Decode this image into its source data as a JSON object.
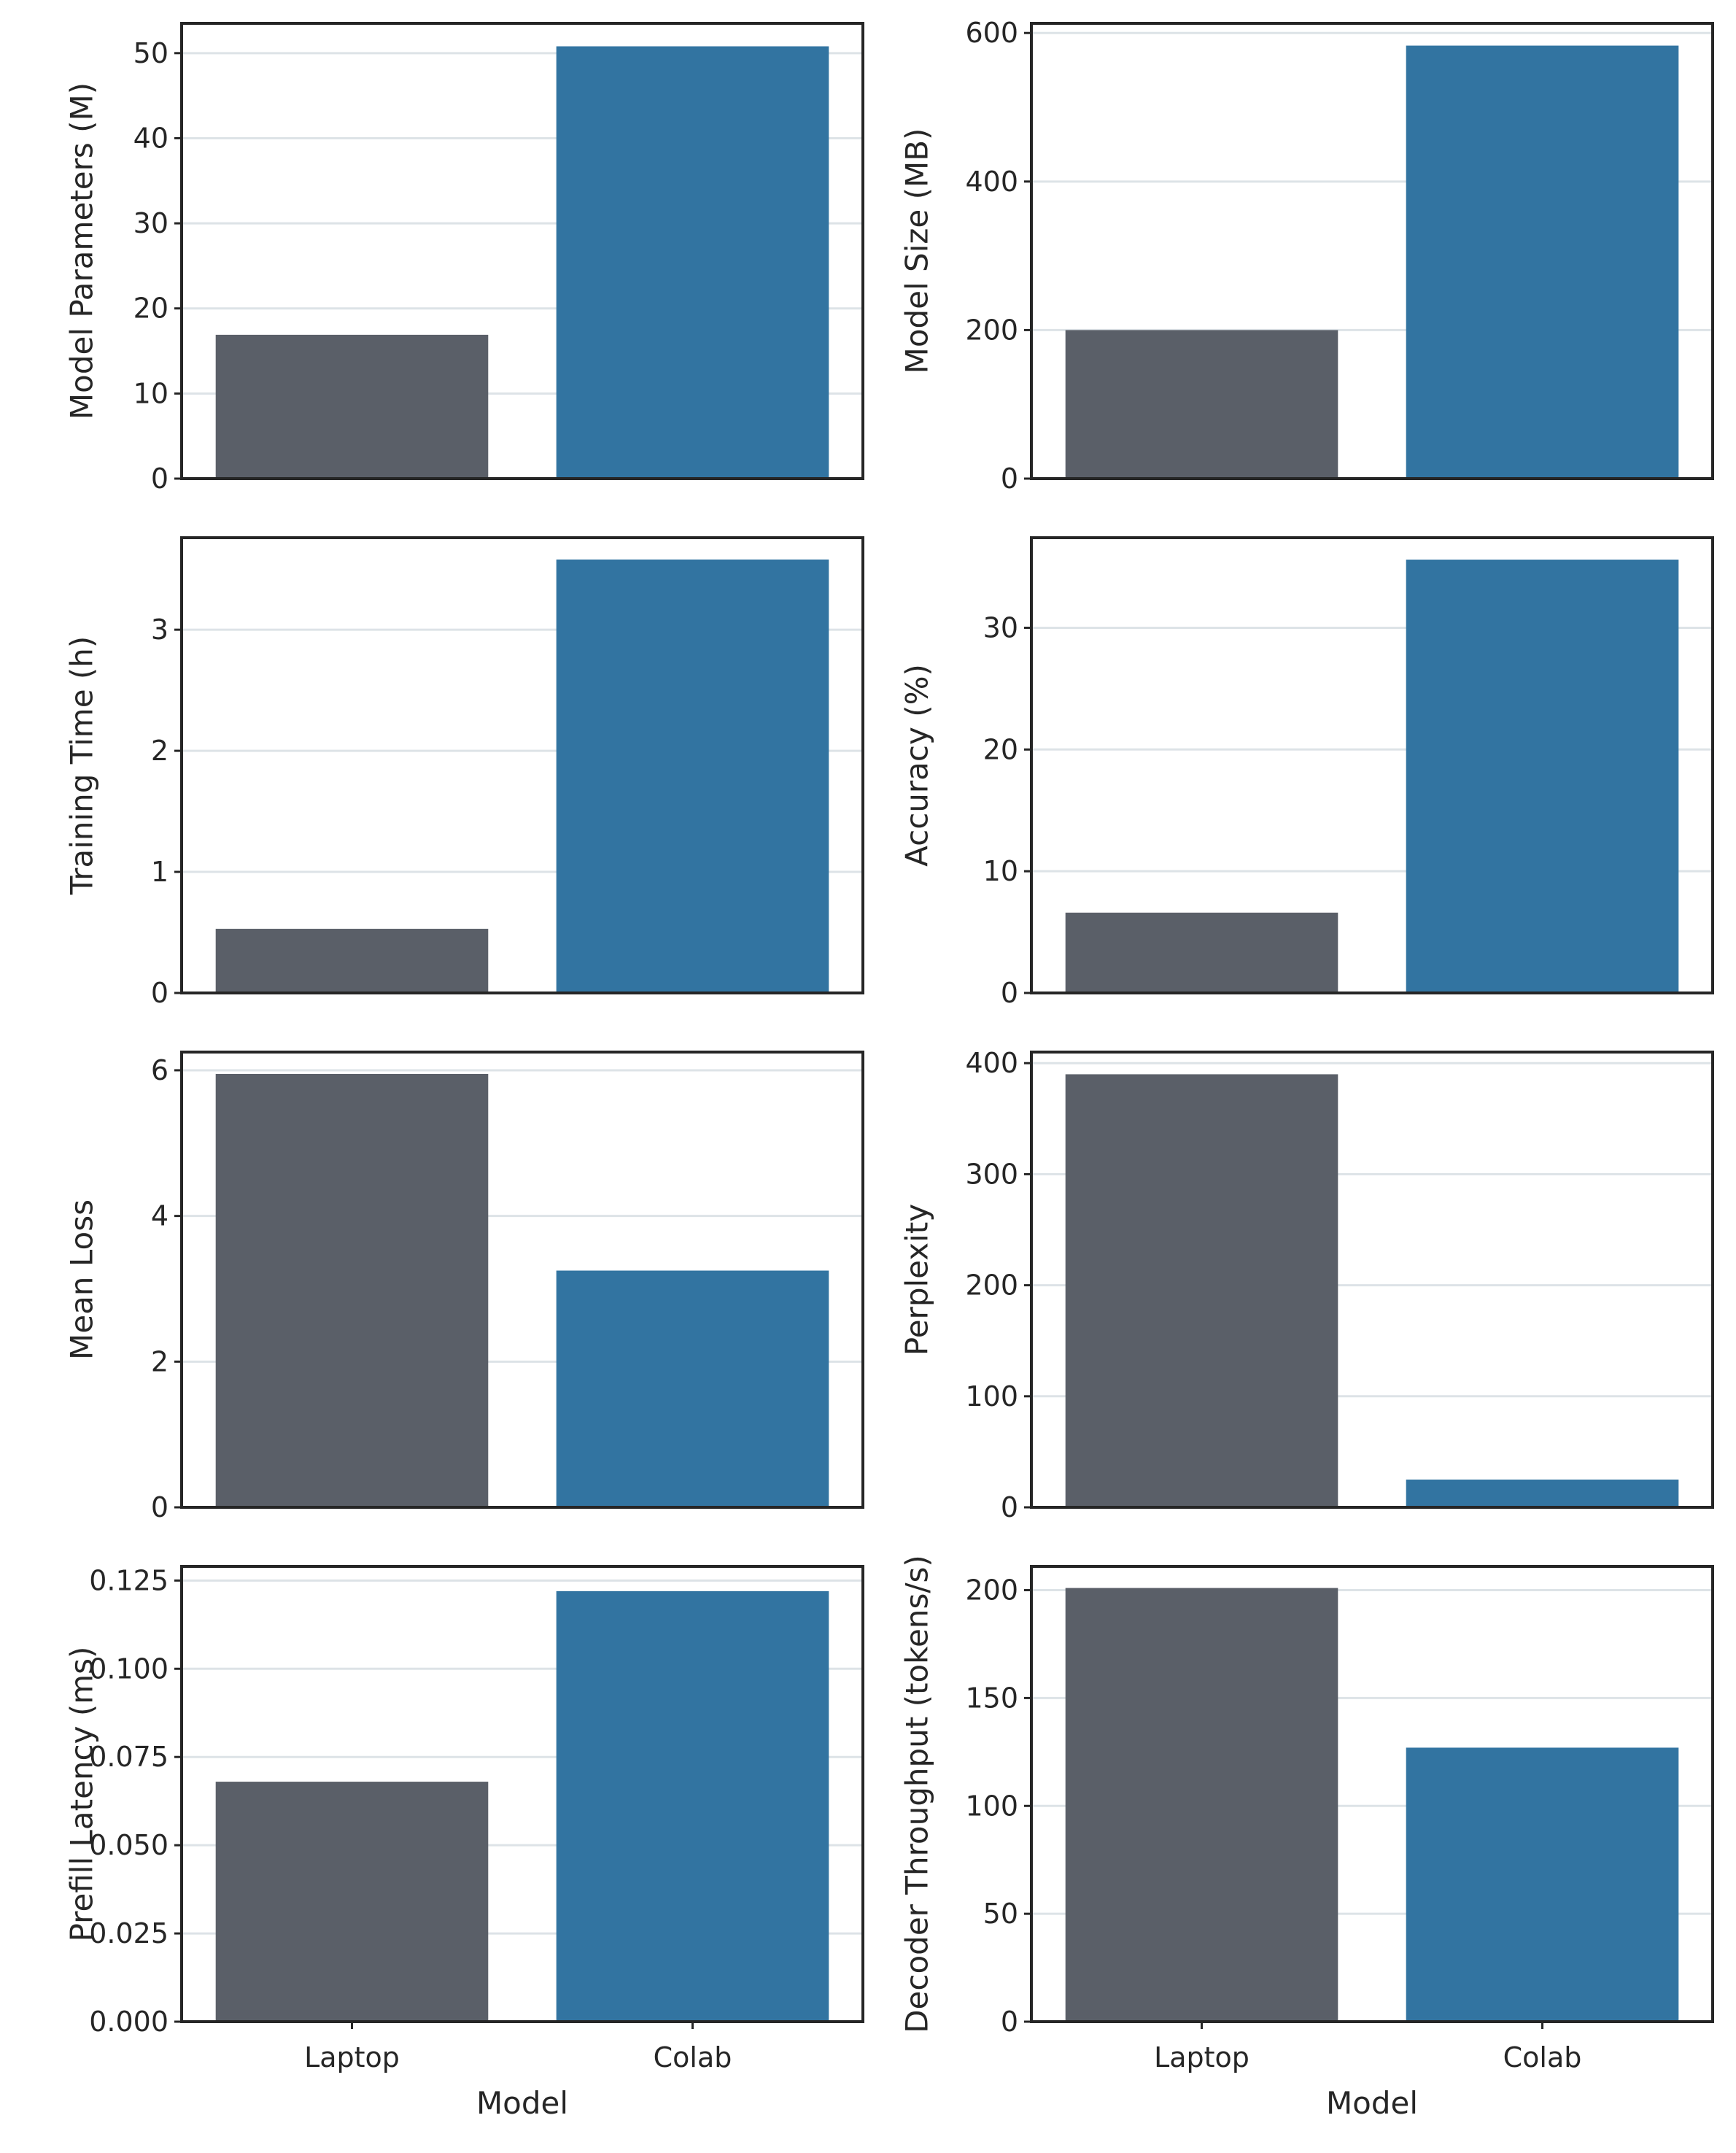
{
  "chart_data": [
    {
      "type": "bar",
      "categories": [
        "Laptop",
        "Colab"
      ],
      "values": [
        16.9,
        50.8
      ],
      "colors": [
        "#5a5f68",
        "#3274a1"
      ],
      "xlabel": "",
      "ylabel": "Model Parameters (M)",
      "ylim": [
        0,
        53.5
      ],
      "yticks": [
        0,
        10,
        20,
        30,
        40,
        50
      ],
      "ytick_labels": [
        "0",
        "10",
        "20",
        "30",
        "40",
        "50"
      ],
      "grid": "horizontal",
      "show_xticks": false
    },
    {
      "type": "bar",
      "categories": [
        "Laptop",
        "Colab"
      ],
      "values": [
        200,
        583
      ],
      "colors": [
        "#5a5f68",
        "#3274a1"
      ],
      "xlabel": "",
      "ylabel": "Model Size (MB)",
      "ylim": [
        0,
        613
      ],
      "yticks": [
        0,
        200,
        400,
        600
      ],
      "ytick_labels": [
        "0",
        "200",
        "400",
        "600"
      ],
      "grid": "horizontal",
      "show_xticks": false
    },
    {
      "type": "bar",
      "categories": [
        "Laptop",
        "Colab"
      ],
      "values": [
        0.53,
        3.58
      ],
      "colors": [
        "#5a5f68",
        "#3274a1"
      ],
      "xlabel": "",
      "ylabel": "Training Time (h)",
      "ylim": [
        0,
        3.76
      ],
      "yticks": [
        0,
        1,
        2,
        3
      ],
      "ytick_labels": [
        "0",
        "1",
        "2",
        "3"
      ],
      "grid": "horizontal",
      "show_xticks": false
    },
    {
      "type": "bar",
      "categories": [
        "Laptop",
        "Colab"
      ],
      "values": [
        6.6,
        35.6
      ],
      "colors": [
        "#5a5f68",
        "#3274a1"
      ],
      "xlabel": "",
      "ylabel": "Accuracy (%)",
      "ylim": [
        0,
        37.4
      ],
      "yticks": [
        0,
        10,
        20,
        30
      ],
      "ytick_labels": [
        "0",
        "10",
        "20",
        "30"
      ],
      "grid": "horizontal",
      "show_xticks": false
    },
    {
      "type": "bar",
      "categories": [
        "Laptop",
        "Colab"
      ],
      "values": [
        5.95,
        3.25
      ],
      "colors": [
        "#5a5f68",
        "#3274a1"
      ],
      "xlabel": "",
      "ylabel": "Mean Loss",
      "ylim": [
        0,
        6.25
      ],
      "yticks": [
        0,
        2,
        4,
        6
      ],
      "ytick_labels": [
        "0",
        "2",
        "4",
        "6"
      ],
      "grid": "horizontal",
      "show_xticks": false
    },
    {
      "type": "bar",
      "categories": [
        "Laptop",
        "Colab"
      ],
      "values": [
        390,
        25
      ],
      "colors": [
        "#5a5f68",
        "#3274a1"
      ],
      "xlabel": "",
      "ylabel": "Perplexity",
      "ylim": [
        0,
        410
      ],
      "yticks": [
        0,
        100,
        200,
        300,
        400
      ],
      "ytick_labels": [
        "0",
        "100",
        "200",
        "300",
        "400"
      ],
      "grid": "horizontal",
      "show_xticks": false
    },
    {
      "type": "bar",
      "categories": [
        "Laptop",
        "Colab"
      ],
      "values": [
        0.068,
        0.122
      ],
      "colors": [
        "#5a5f68",
        "#3274a1"
      ],
      "xlabel": "Model",
      "ylabel": "Prefill Latency (ms)",
      "ylim": [
        0,
        0.129
      ],
      "yticks": [
        0,
        0.025,
        0.05,
        0.075,
        0.1,
        0.125
      ],
      "ytick_labels": [
        "0.000",
        "0.025",
        "0.050",
        "0.075",
        "0.100",
        "0.125"
      ],
      "grid": "horizontal",
      "show_xticks": true
    },
    {
      "type": "bar",
      "categories": [
        "Laptop",
        "Colab"
      ],
      "values": [
        201,
        127
      ],
      "colors": [
        "#5a5f68",
        "#3274a1"
      ],
      "xlabel": "Model",
      "ylabel": "Decoder Throughput (tokens/s)",
      "ylim": [
        0,
        211
      ],
      "yticks": [
        0,
        50,
        100,
        150,
        200
      ],
      "ytick_labels": [
        "0",
        "50",
        "100",
        "150",
        "200"
      ],
      "grid": "horizontal",
      "show_xticks": true
    }
  ]
}
